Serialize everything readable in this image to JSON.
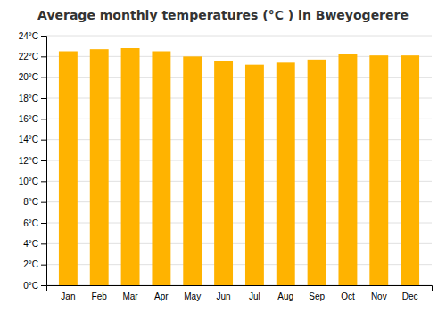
{
  "chart_data": {
    "type": "bar",
    "title": "Average monthly temperatures (°C ) in Bweyogerere",
    "categories": [
      "Jan",
      "Feb",
      "Mar",
      "Apr",
      "May",
      "Jun",
      "Jul",
      "Aug",
      "Sep",
      "Oct",
      "Nov",
      "Dec"
    ],
    "values": [
      22.5,
      22.7,
      22.8,
      22.5,
      22.0,
      21.6,
      21.2,
      21.4,
      21.7,
      22.2,
      22.1,
      22.1
    ],
    "color": "#FFB300",
    "ylim": [
      0,
      24
    ],
    "yticks": [
      {
        "value": 0,
        "label": "0°C"
      },
      {
        "value": 2,
        "label": "2°C"
      },
      {
        "value": 4,
        "label": "4°C"
      },
      {
        "value": 6,
        "label": "6°C"
      },
      {
        "value": 8,
        "label": "8°C"
      },
      {
        "value": 10,
        "label": "10°C"
      },
      {
        "value": 12,
        "label": "12°C"
      },
      {
        "value": 14,
        "label": "14°C"
      },
      {
        "value": 16,
        "label": "16°C"
      },
      {
        "value": 18,
        "label": "18°C"
      },
      {
        "value": 20,
        "label": "20°C"
      },
      {
        "value": 22,
        "label": "22°C"
      },
      {
        "value": 24,
        "label": "24°C"
      }
    ],
    "grid": true
  }
}
